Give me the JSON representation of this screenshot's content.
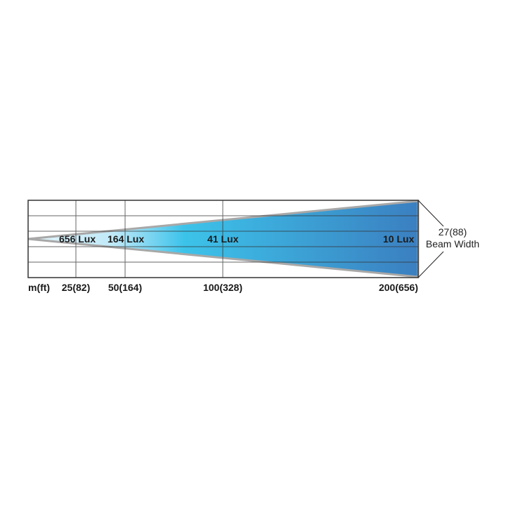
{
  "diagram": {
    "axis_unit_label": "m(ft)",
    "distance_labels": [
      "25(82)",
      "50(164)",
      "100(328)",
      "200(656)"
    ],
    "distances_m": [
      25,
      50,
      100,
      200
    ],
    "lux_labels": [
      "656 Lux",
      "164 Lux",
      "41 Lux",
      "10 Lux"
    ],
    "beam_width_value": "27(88)",
    "beam_width_label": "Beam Width",
    "colors": {
      "beam_start": "#e6f6fc",
      "beam_mid": "#3cc3ea",
      "beam_end": "#3b7fc0",
      "beam_outline": "#a8a8a8",
      "grid": "#333333"
    }
  }
}
